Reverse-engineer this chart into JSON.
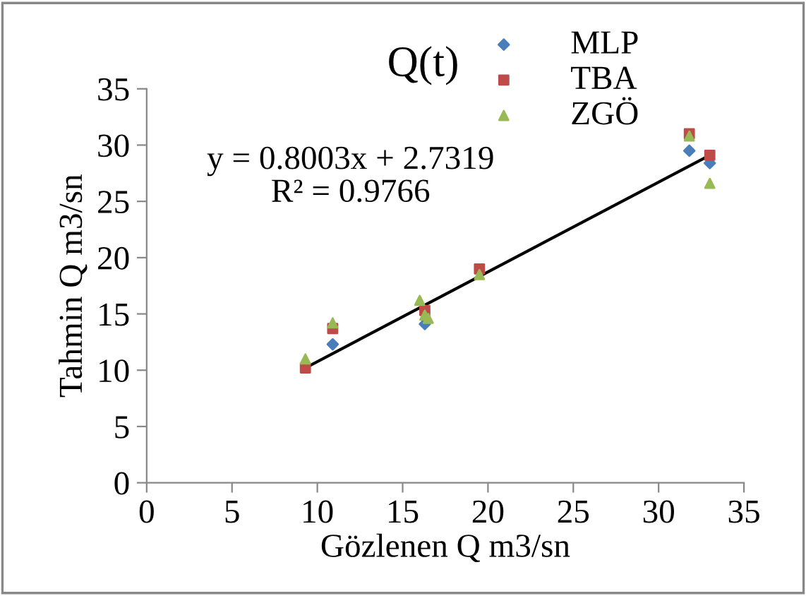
{
  "chart_data": {
    "type": "scatter",
    "title": "Q(t)",
    "xlabel": "Gözlenen Q m3/sn",
    "ylabel": "Tahmin Q m3/sn",
    "xlim": [
      0,
      35
    ],
    "xticks": [
      0,
      5,
      10,
      15,
      20,
      25,
      30,
      35
    ],
    "ylim": [
      0,
      35
    ],
    "yticks": [
      0,
      5,
      10,
      15,
      20,
      25,
      30,
      35
    ],
    "grid": false,
    "legend": "top right",
    "annotations": [
      "y = 0.8003x + 2.7319",
      "R² = 0.9766"
    ],
    "series": [
      {
        "name": "MLP",
        "color": "#4a7ebb",
        "marker": "diamond",
        "x": [
          10.9,
          16.3,
          31.8,
          33.0
        ],
        "values": [
          12.3,
          14.1,
          29.5,
          28.4
        ]
      },
      {
        "name": "TBA",
        "color": "#be4b48",
        "marker": "square",
        "x": [
          9.3,
          10.9,
          16.3,
          19.5,
          31.8,
          33.0
        ],
        "values": [
          10.2,
          13.7,
          15.3,
          19.0,
          31.0,
          29.1
        ]
      },
      {
        "name": "ZGÖ",
        "color": "#98b954",
        "marker": "triangle",
        "x": [
          9.3,
          10.9,
          16.0,
          16.3,
          16.5,
          19.5,
          31.8,
          33.0
        ],
        "values": [
          11.0,
          14.2,
          16.2,
          14.9,
          14.6,
          18.5,
          30.8,
          26.6
        ]
      },
      {
        "type": "line",
        "color": "#000000",
        "marker": "none",
        "x": [
          9.3,
          33.0
        ],
        "values": [
          10.2,
          29.1
        ]
      }
    ]
  }
}
